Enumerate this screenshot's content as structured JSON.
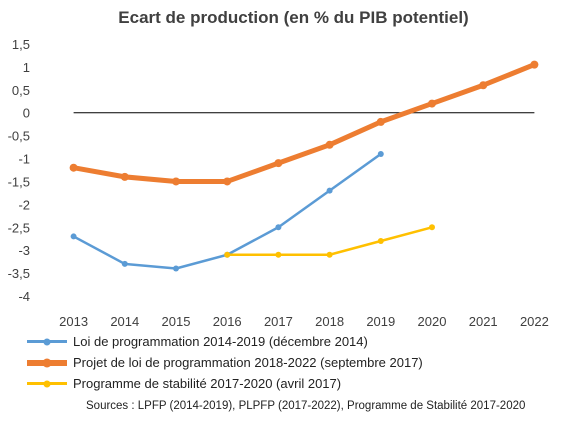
{
  "chart_data": {
    "type": "line",
    "title": "Ecart de production (en % du PIB potentiel)",
    "xlabel": "",
    "ylabel": "",
    "x": [
      "2013",
      "2014",
      "2015",
      "2016",
      "2017",
      "2018",
      "2019",
      "2020",
      "2021",
      "2022"
    ],
    "ylim": [
      -4,
      1.5
    ],
    "yticks": [
      "1,5",
      "1",
      "0,5",
      "0",
      "-0,5",
      "-1",
      "-1,5",
      "-2",
      "-2,5",
      "-3",
      "-3,5",
      "-4"
    ],
    "grid": false,
    "legend_position": "bottom",
    "series": [
      {
        "name": "Loi de programmation 2014-2019 (décembre 2014)",
        "color": "#5b9bd5",
        "values": [
          -2.7,
          -3.3,
          -3.4,
          -3.1,
          -2.5,
          -1.7,
          -0.9,
          null,
          null,
          null
        ]
      },
      {
        "name": "Projet de loi de programmation 2018-2022 (septembre 2017)",
        "color": "#ed7d31",
        "values": [
          -1.2,
          -1.4,
          -1.5,
          -1.5,
          -1.1,
          -0.7,
          -0.2,
          0.2,
          0.6,
          1.05
        ]
      },
      {
        "name": "Programme de stabilité 2017-2020 (avril 2017)",
        "color": "#ffc000",
        "values": [
          null,
          null,
          null,
          -3.1,
          -3.1,
          -3.1,
          -2.8,
          -2.5,
          null,
          null
        ]
      }
    ],
    "source": "Sources : LPFP (2014-2019), PLPFP (2017-2022), Programme de Stabilité 2017-2020"
  }
}
